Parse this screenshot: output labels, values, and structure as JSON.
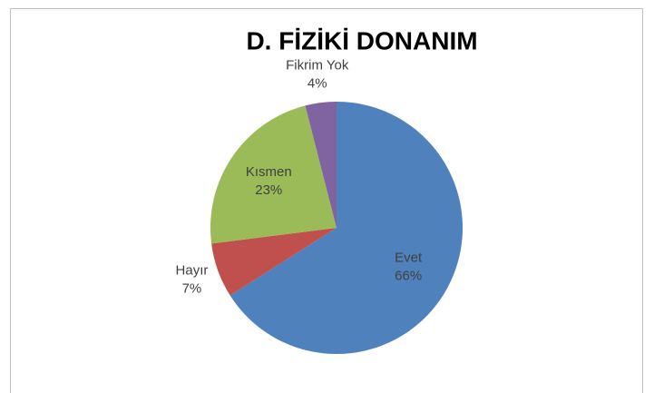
{
  "chart_data": {
    "type": "pie",
    "title": "D. FİZİKİ DONANIM",
    "categories": [
      "Evet",
      "Hayır",
      "Kısmen",
      "Fikrim Yok"
    ],
    "values": [
      66,
      7,
      23,
      4
    ],
    "value_labels": [
      "66%",
      "7%",
      "23%",
      "4%"
    ],
    "colors": [
      "#4f81bd",
      "#c0504d",
      "#9bbb59",
      "#8064a2"
    ]
  }
}
